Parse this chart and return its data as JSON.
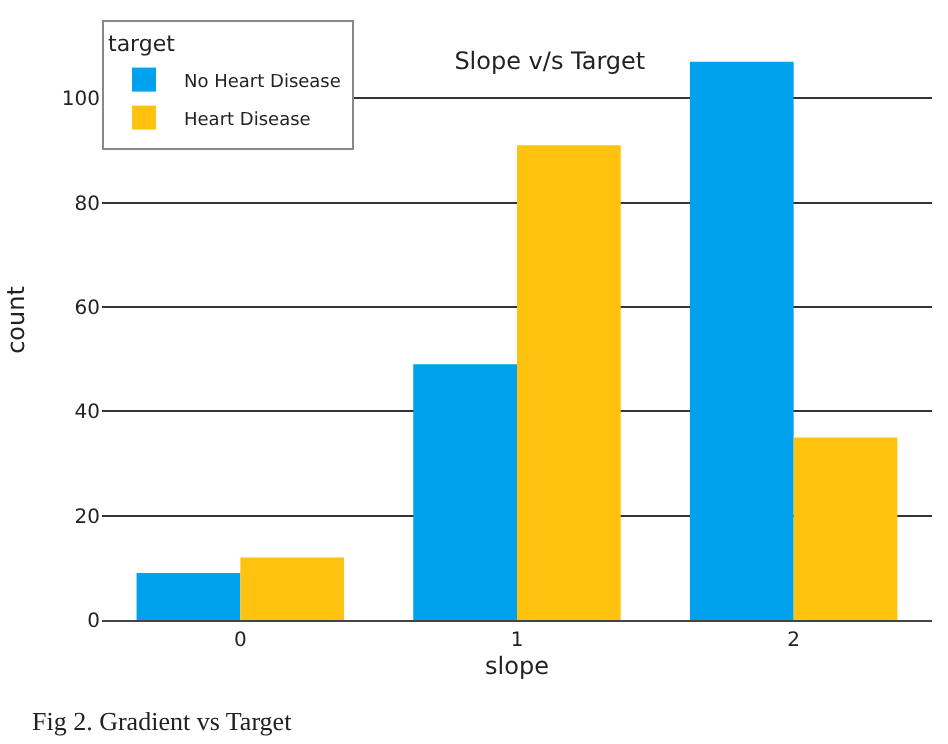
{
  "chart_data": {
    "type": "bar",
    "title": "Slope v/s Target",
    "xlabel": "slope",
    "ylabel": "count",
    "legend_title": "target",
    "categories": [
      "0",
      "1",
      "2"
    ],
    "series": [
      {
        "name": "No Heart Disease",
        "color": "#00a2ed",
        "values": [
          9,
          49,
          107
        ]
      },
      {
        "name": "Heart Disease",
        "color": "#ffc20e",
        "values": [
          12,
          91,
          35
        ]
      }
    ],
    "ylim": [
      0,
      115
    ],
    "yticks": [
      0,
      20,
      40,
      60,
      80,
      100
    ],
    "grid": "y",
    "legend": "top left",
    "annotations": [
      "Fig 2. Gradient vs Target"
    ]
  }
}
